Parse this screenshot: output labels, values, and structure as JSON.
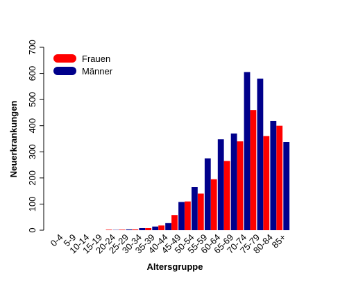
{
  "chart_data": {
    "type": "bar",
    "xlabel": "Altersgruppe",
    "ylabel": "Neuerkrankungen",
    "ylim": [
      0,
      700
    ],
    "yticks": [
      "0",
      "100",
      "200",
      "300",
      "400",
      "500",
      "600",
      "700"
    ],
    "categories": [
      "0-4",
      "5-9",
      "10-14",
      "15-19",
      "20-24",
      "25-29",
      "30-34",
      "35-39",
      "40-44",
      "45-49",
      "50-54",
      "55-59",
      "60-64",
      "65-69",
      "70-74",
      "75-79",
      "80-84",
      "85+"
    ],
    "series": [
      {
        "name": "Frauen",
        "color": "#ff0000",
        "values": [
          0,
          0,
          0,
          0,
          2,
          2,
          3,
          8,
          18,
          58,
          110,
          140,
          195,
          265,
          340,
          460,
          360,
          400
        ]
      },
      {
        "name": "Männer",
        "color": "#00008b",
        "values": [
          0,
          0,
          0,
          0,
          1,
          3,
          8,
          14,
          27,
          108,
          165,
          275,
          348,
          370,
          605,
          580,
          418,
          338
        ]
      }
    ],
    "legend_position": "top-left",
    "grid": false
  }
}
